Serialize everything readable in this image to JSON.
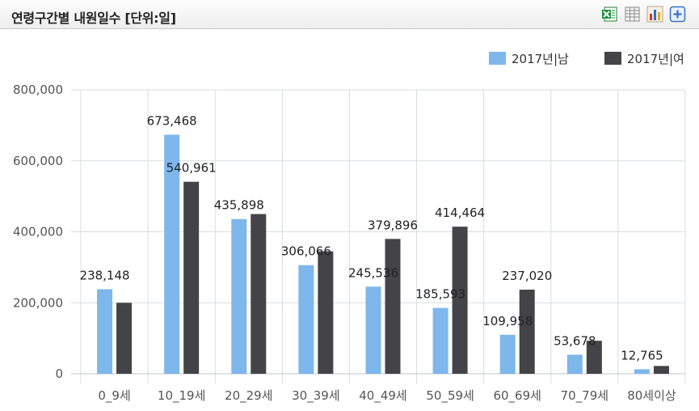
{
  "header": {
    "title": "연령구간별 내원일수 [단위:일]",
    "tools": [
      {
        "icon": "excel-export-icon"
      },
      {
        "icon": "table-view-icon"
      },
      {
        "icon": "bar-chart-icon"
      },
      {
        "icon": "expand-plus-icon"
      }
    ]
  },
  "chart_data": {
    "type": "bar",
    "categories": [
      "0_9세",
      "10_19세",
      "20_29세",
      "30_39세",
      "40_49세",
      "50_59세",
      "60_69세",
      "70_79세",
      "80세이상"
    ],
    "series": [
      {
        "name": "2017년|남",
        "color": "#7db7ec",
        "values": [
          238148,
          673468,
          435898,
          306066,
          245536,
          185593,
          109958,
          53678,
          12765
        ]
      },
      {
        "name": "2017년|여",
        "color": "#434348",
        "values": [
          200000,
          540961,
          450000,
          345000,
          379896,
          414464,
          237020,
          93000,
          22000
        ]
      }
    ],
    "data_labels": {
      "series_0": [
        "238,148",
        "673,468",
        "435,898",
        "306,066",
        "245,536",
        "185,593",
        "109,958",
        "53,678",
        "12,765"
      ],
      "series_1": [
        "",
        "540,961",
        "",
        "",
        "379,896",
        "414,464",
        "237,020",
        "",
        ""
      ]
    },
    "ylim": [
      0,
      800000
    ],
    "yticks": [
      0,
      200000,
      400000,
      600000,
      800000
    ],
    "ytick_labels": [
      "0",
      "200,000",
      "400,000",
      "600,000",
      "800,000"
    ],
    "grid": true,
    "legend_position": "top-right"
  }
}
